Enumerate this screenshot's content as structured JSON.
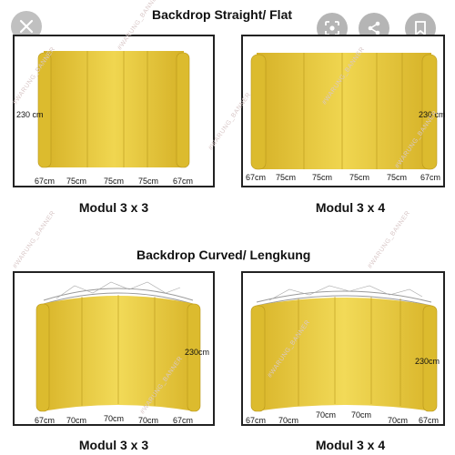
{
  "header": {
    "close_icon": "close-icon",
    "actions": [
      {
        "icon": "lens-icon"
      },
      {
        "icon": "share-icon"
      },
      {
        "icon": "bookmark-icon"
      }
    ]
  },
  "sections": {
    "straight_title": "Backdrop Straight/ Flat",
    "curved_title": "Backdrop Curved/ Lengkung"
  },
  "panels": {
    "straight_3x3": {
      "label": "Modul 3 x 3",
      "height": "230 cm",
      "widths": [
        "67cm",
        "75cm",
        "75cm",
        "75cm",
        "67cm"
      ]
    },
    "straight_3x4": {
      "label": "Modul 3 x 4",
      "height": "230 cm",
      "widths": [
        "67cm",
        "75cm",
        "75cm",
        "75cm",
        "75cm",
        "67cm"
      ]
    },
    "curved_3x3": {
      "label": "Modul 3 x 3",
      "height": "230cm",
      "widths": [
        "67cm",
        "70cm",
        "70cm",
        "70cm",
        "67cm"
      ]
    },
    "curved_3x4": {
      "label": "Modul 3 x 4",
      "height": "230cm",
      "widths": [
        "67cm",
        "70cm",
        "70cm",
        "70cm",
        "70cm",
        "67cm"
      ]
    }
  },
  "watermark": "#WARUNG_BANNER",
  "colors": {
    "panel_gold": "#e8c93a",
    "panel_dark": "#c9a51e",
    "frame": "#222222"
  }
}
